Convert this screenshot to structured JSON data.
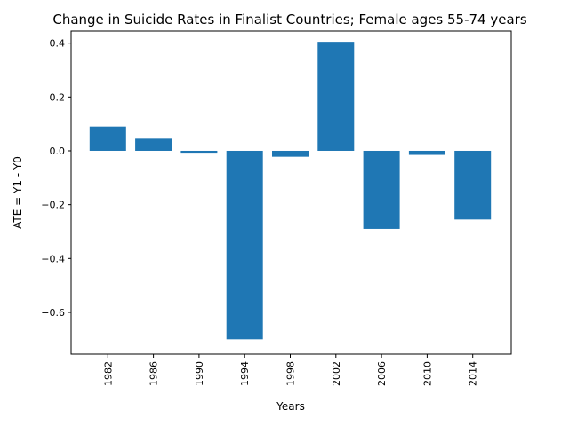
{
  "chart_data": {
    "type": "bar",
    "title": "Change in Suicide Rates in Finalist Countries; Female ages 55-74 years",
    "xlabel": "Years",
    "ylabel": "ATE = Y1 - Y0",
    "categories": [
      "1982",
      "1986",
      "1990",
      "1994",
      "1998",
      "2002",
      "2006",
      "2010",
      "2014"
    ],
    "values": [
      0.09,
      0.045,
      -0.007,
      -0.7,
      -0.022,
      0.405,
      -0.29,
      -0.015,
      -0.255
    ],
    "ylim": [
      -0.755,
      0.445
    ],
    "yticks": [
      0.4,
      0.2,
      0.0,
      -0.2,
      -0.4,
      -0.6
    ],
    "ytick_labels": [
      "0.4",
      "0.2",
      "0.0",
      "−0.2",
      "−0.4",
      "−0.6"
    ],
    "grid": false,
    "bar_color": "#1f77b4"
  }
}
